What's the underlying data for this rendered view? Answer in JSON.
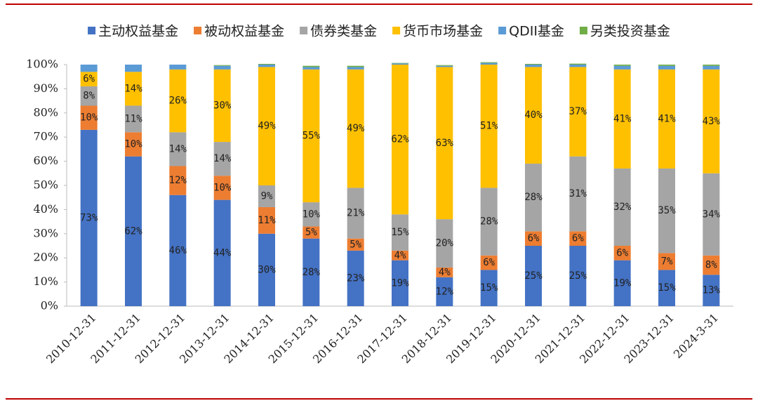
{
  "chart_data": {
    "type": "stacked_bar",
    "categories": [
      "2010-12-31",
      "2011-12-31",
      "2012-12-31",
      "2013-12-31",
      "2014-12-31",
      "2015-12-31",
      "2016-12-31",
      "2017-12-31",
      "2018-12-31",
      "2019-12-31",
      "2020-12-31",
      "2021-12-31",
      "2022-12-31",
      "2023-12-31",
      "2024-3-31"
    ],
    "series": [
      {
        "name": "主动权益基金",
        "color": "#4472c4",
        "values": [
          73,
          62,
          46,
          44,
          30,
          28,
          23,
          19,
          12,
          15,
          25,
          25,
          19,
          15,
          13
        ],
        "value_labels": [
          "73%",
          "62%",
          "46%",
          "44%",
          "30%",
          "28%",
          "23%",
          "19%",
          "12%",
          "15%",
          "25%",
          "25%",
          "19%",
          "15%",
          "13%"
        ]
      },
      {
        "name": "被动权益基金",
        "color": "#ed7d31",
        "values": [
          10,
          10,
          12,
          10,
          11,
          5,
          5,
          4,
          4,
          6,
          6,
          6,
          6,
          7,
          8
        ],
        "value_labels": [
          "10%",
          "10%",
          "12%",
          "10%",
          "11%",
          "5%",
          "5%",
          "4%",
          "4%",
          "6%",
          "6%",
          "6%",
          "6%",
          "7%",
          "8%"
        ]
      },
      {
        "name": "债券类基金",
        "color": "#a5a5a5",
        "values": [
          8,
          11,
          14,
          14,
          9,
          10,
          21,
          15,
          20,
          28,
          28,
          31,
          32,
          35,
          34
        ],
        "value_labels": [
          "8%",
          "11%",
          "14%",
          "14%",
          "9%",
          "10%",
          "21%",
          "15%",
          "20%",
          "28%",
          "28%",
          "31%",
          "32%",
          "35%",
          "34%"
        ]
      },
      {
        "name": "货币市场基金",
        "color": "#ffc000",
        "values": [
          6,
          14,
          26,
          30,
          49,
          55,
          49,
          62,
          63,
          51,
          40,
          37,
          41,
          41,
          43
        ],
        "value_labels": [
          "6%",
          "14%",
          "26%",
          "30%",
          "49%",
          "55%",
          "49%",
          "62%",
          "63%",
          "51%",
          "40%",
          "37%",
          "41%",
          "41%",
          "43%"
        ]
      },
      {
        "name": "QDII基金",
        "color": "#5b9bd5",
        "values": [
          3,
          3,
          2,
          1.5,
          1,
          1,
          1,
          0.5,
          0.5,
          0.7,
          1,
          1,
          1.5,
          1.5,
          1.5
        ]
      },
      {
        "name": "另类投资基金",
        "color": "#70ad47",
        "values": [
          0,
          0,
          0,
          0.3,
          0.3,
          0.5,
          0.5,
          0.2,
          0.3,
          0.3,
          0.3,
          0.4,
          0.5,
          0.5,
          0.5
        ]
      }
    ],
    "ylim": [
      0,
      100
    ],
    "yticks": [
      {
        "value": 0,
        "label": "0%"
      },
      {
        "value": 10,
        "label": "10%"
      },
      {
        "value": 20,
        "label": "20%"
      },
      {
        "value": 30,
        "label": "30%"
      },
      {
        "value": 40,
        "label": "40%"
      },
      {
        "value": 50,
        "label": "50%"
      },
      {
        "value": 60,
        "label": "60%"
      },
      {
        "value": 70,
        "label": "70%"
      },
      {
        "value": 80,
        "label": "80%"
      },
      {
        "value": 90,
        "label": "90%"
      },
      {
        "value": 100,
        "label": "100%"
      }
    ],
    "legend": "top"
  }
}
